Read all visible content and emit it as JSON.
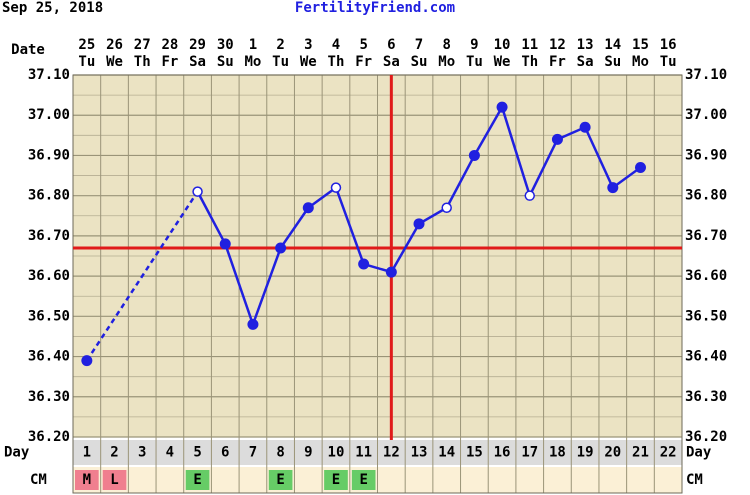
{
  "chart_data": {
    "type": "line",
    "title": "FertilityFriend.com",
    "subtitle": "Sep 25, 2018",
    "date_label": "Date",
    "day_label": "Day",
    "cm_label": "CM",
    "dates": [
      "25",
      "26",
      "27",
      "28",
      "29",
      "30",
      "1",
      "2",
      "3",
      "4",
      "5",
      "6",
      "7",
      "8",
      "9",
      "10",
      "11",
      "12",
      "13",
      "14",
      "15",
      "16"
    ],
    "weekdays": [
      "Tu",
      "We",
      "Th",
      "Fr",
      "Sa",
      "Su",
      "Mo",
      "Tu",
      "We",
      "Th",
      "Fr",
      "Sa",
      "Su",
      "Mo",
      "Tu",
      "We",
      "Th",
      "Fr",
      "Sa",
      "Su",
      "Mo",
      "Tu"
    ],
    "categories": [
      1,
      2,
      3,
      4,
      5,
      6,
      7,
      8,
      9,
      10,
      11,
      12,
      13,
      14,
      15,
      16,
      17,
      18,
      19,
      20,
      21,
      22
    ],
    "values": [
      36.39,
      null,
      null,
      null,
      36.81,
      36.68,
      36.48,
      36.67,
      36.77,
      36.82,
      36.63,
      36.61,
      36.73,
      36.77,
      36.9,
      37.02,
      36.8,
      36.94,
      36.97,
      36.82,
      36.87,
      null
    ],
    "open_markers": [
      false,
      false,
      false,
      false,
      true,
      false,
      false,
      false,
      false,
      true,
      false,
      false,
      false,
      true,
      false,
      false,
      true,
      false,
      false,
      false,
      false,
      false
    ],
    "color": "#2020e0",
    "cm": [
      "M",
      "L",
      null,
      null,
      "E",
      null,
      null,
      "E",
      null,
      "E",
      "E",
      null,
      null,
      null,
      null,
      null,
      null,
      null,
      null,
      null,
      null,
      null
    ],
    "cm_colors": {
      "M": "#f07f8f",
      "L": "#f07f8f",
      "E": "#66cc66"
    },
    "coverline": 36.67,
    "ovulation_day": 12,
    "marker_line_color": "#e01a1a",
    "ylim": [
      36.2,
      37.1
    ],
    "yticks": [
      {
        "value": 36.2,
        "label": "36.20"
      },
      {
        "value": 36.3,
        "label": "36.30"
      },
      {
        "value": 36.4,
        "label": "36.40"
      },
      {
        "value": 36.5,
        "label": "36.50"
      },
      {
        "value": 36.6,
        "label": "36.60"
      },
      {
        "value": 36.7,
        "label": "36.70"
      },
      {
        "value": 36.8,
        "label": "36.80"
      },
      {
        "value": 36.9,
        "label": "36.90"
      },
      {
        "value": 37.0,
        "label": "37.00"
      },
      {
        "value": 37.1,
        "label": "37.10"
      }
    ],
    "grid": true
  }
}
